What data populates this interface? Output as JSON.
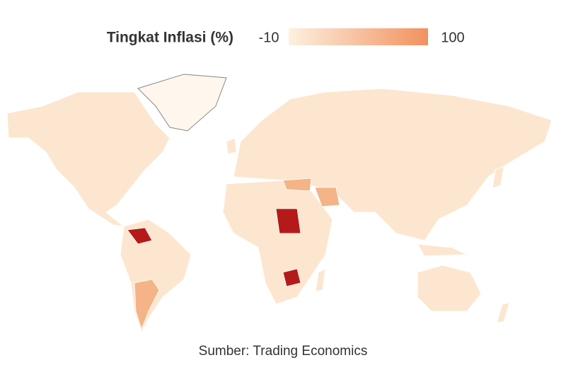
{
  "legend": {
    "title": "Tingkat Inflasi (%)",
    "min": -10,
    "max": 100,
    "colors": [
      "#fdf0e0",
      "#f2915e"
    ]
  },
  "source": "Sumber: Trading Economics"
}
